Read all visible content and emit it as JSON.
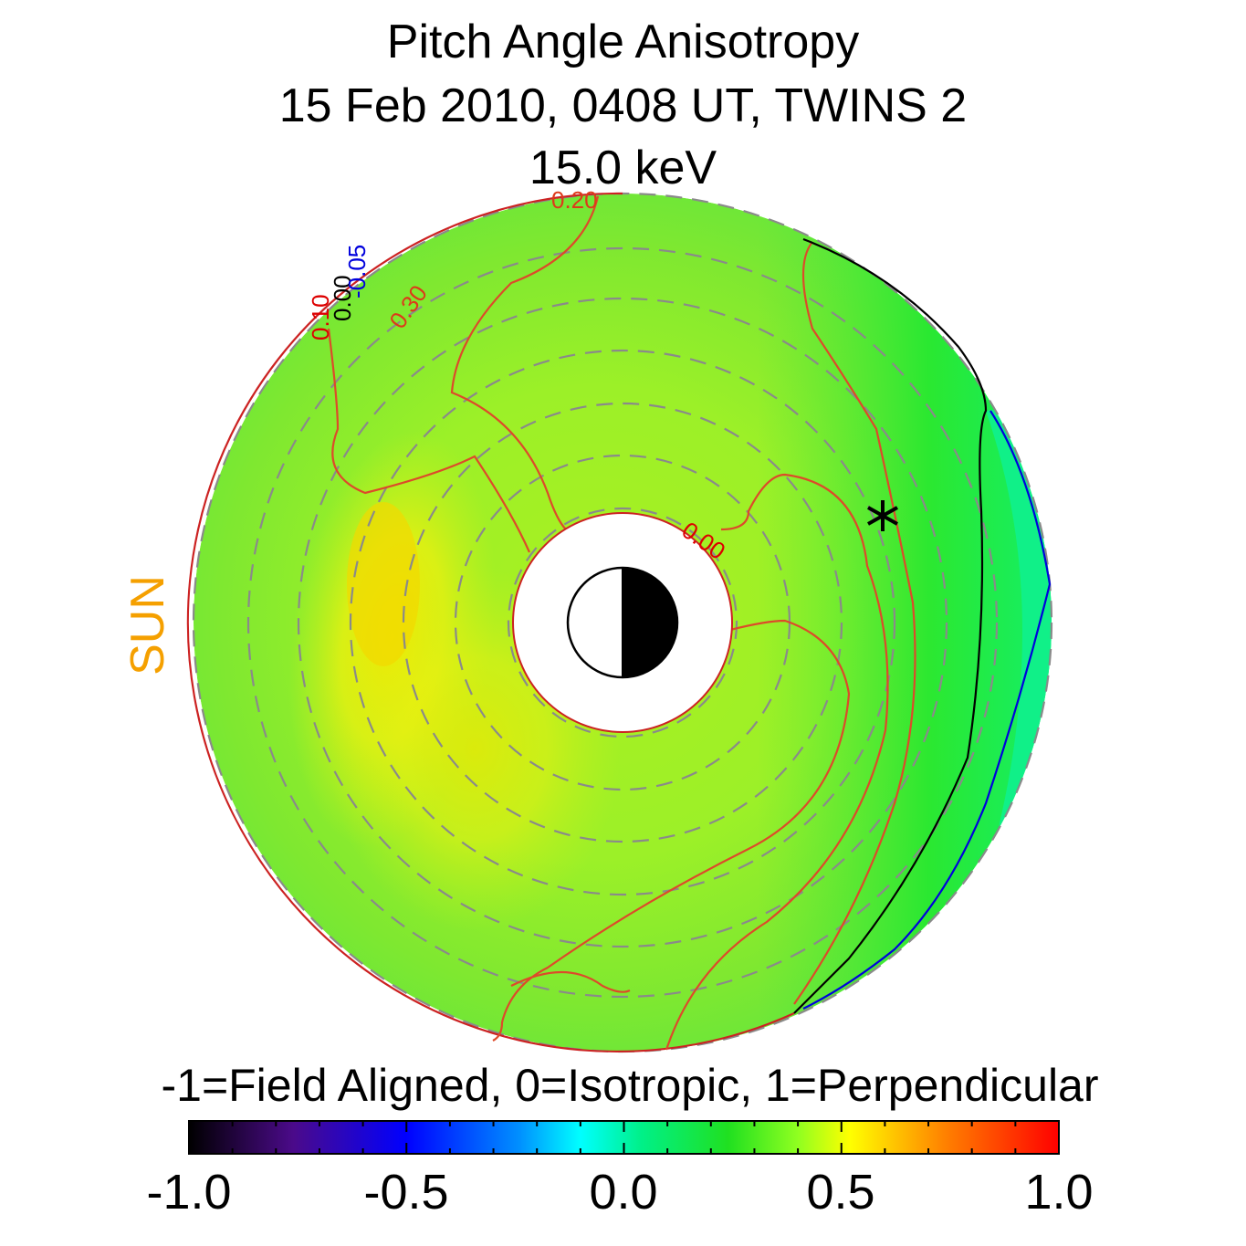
{
  "title": {
    "line1": "Pitch Angle Anisotropy",
    "line2": "15 Feb 2010, 0408 UT,  TWINS 2",
    "line3": "15.0 keV"
  },
  "sun_label": "SUN",
  "colorbar_caption": "-1=Field Aligned, 0=Isotropic, 1=Perpendicular",
  "chart_data": {
    "type": "heatmap",
    "projection": "polar equatorial map, Sun to the left",
    "value_range": [
      -1.0,
      1.0
    ],
    "colorbar": {
      "ticks": [
        "-1.0",
        "-0.5",
        "0.0",
        "0.5",
        "1.0"
      ],
      "tick_values": [
        -1.0,
        -0.5,
        0.0,
        0.5,
        1.0
      ],
      "colors": [
        "#000000",
        "#5a0a9c",
        "#0000ff",
        "#0090ff",
        "#00ffff",
        "#00ff70",
        "#20e020",
        "#90ff20",
        "#ffff00",
        "#ff8000",
        "#ff0000"
      ]
    },
    "contours": [
      {
        "level": "0.20",
        "color": "#dd3a1a"
      },
      {
        "level": "0.30",
        "color": "#dd3a1a"
      },
      {
        "level": "0.10",
        "color": "#dd0000"
      },
      {
        "level": "0.00",
        "color": "#000000"
      },
      {
        "level": "-0.05",
        "color": "#0000dd"
      }
    ],
    "contour_labels": [
      "0.20",
      "0.30",
      "0.10",
      "0.00",
      "-0.05",
      "0.00"
    ],
    "features": {
      "earth_symbol": "half-lit Earth, dark on night side",
      "spacecraft_marker": "*"
    },
    "dominant_values": {
      "dayside_region": 0.45,
      "inner_ring": 0.3,
      "nightside_outer": 0.05,
      "outer_nightside_edge": -0.05
    }
  }
}
